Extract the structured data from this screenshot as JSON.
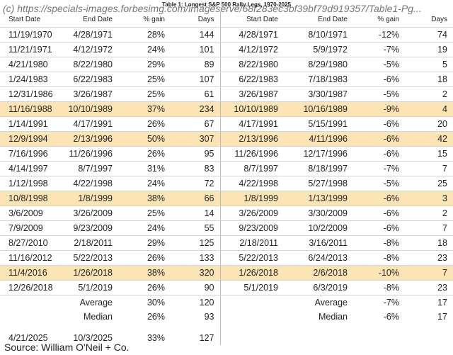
{
  "watermark": "(c) https://specials-images.forbesimg.com/imageserve/68f283ec3bf39bf79d919357/Table1-Pg...",
  "title": "Table 1: Longest S&P 500 Rally Legs, 1970-2025",
  "table": {
    "headers": [
      "Start Date",
      "End Date",
      "% gain",
      "Days",
      "Start Date",
      "End Date",
      "% gain",
      "Days"
    ],
    "rows": [
      {
        "cells": [
          "11/19/1970",
          "4/28/1971",
          "28%",
          144,
          "4/28/1971",
          "8/10/1971",
          "-12%",
          74
        ],
        "highlight": false
      },
      {
        "cells": [
          "11/21/1971",
          "4/12/1972",
          "24%",
          101,
          "4/12/1972",
          "5/9/1972",
          "-7%",
          19
        ],
        "highlight": false
      },
      {
        "cells": [
          "4/21/1980",
          "8/22/1980",
          "29%",
          89,
          "8/22/1980",
          "8/29/1980",
          "-5%",
          5
        ],
        "highlight": false
      },
      {
        "cells": [
          "1/24/1983",
          "6/22/1983",
          "25%",
          107,
          "6/22/1983",
          "7/18/1983",
          "-6%",
          18
        ],
        "highlight": false
      },
      {
        "cells": [
          "12/31/1986",
          "3/26/1987",
          "25%",
          61,
          "3/26/1987",
          "3/30/1987",
          "-5%",
          2
        ],
        "highlight": false
      },
      {
        "cells": [
          "11/16/1988",
          "10/10/1989",
          "37%",
          234,
          "10/10/1989",
          "10/16/1989",
          "-9%",
          4
        ],
        "highlight": true
      },
      {
        "cells": [
          "1/14/1991",
          "4/17/1991",
          "26%",
          67,
          "4/17/1991",
          "5/15/1991",
          "-6%",
          20
        ],
        "highlight": false
      },
      {
        "cells": [
          "12/9/1994",
          "2/13/1996",
          "50%",
          307,
          "2/13/1996",
          "4/11/1996",
          "-6%",
          42
        ],
        "highlight": true
      },
      {
        "cells": [
          "7/16/1996",
          "11/26/1996",
          "26%",
          95,
          "11/26/1996",
          "12/17/1996",
          "-6%",
          15
        ],
        "highlight": false
      },
      {
        "cells": [
          "4/14/1997",
          "8/7/1997",
          "31%",
          83,
          "8/7/1997",
          "8/18/1997",
          "-7%",
          7
        ],
        "highlight": false
      },
      {
        "cells": [
          "1/12/1998",
          "4/22/1998",
          "24%",
          72,
          "4/22/1998",
          "5/27/1998",
          "-5%",
          25
        ],
        "highlight": false
      },
      {
        "cells": [
          "10/8/1998",
          "1/8/1999",
          "38%",
          66,
          "1/8/1999",
          "1/13/1999",
          "-6%",
          3
        ],
        "highlight": true
      },
      {
        "cells": [
          "3/6/2009",
          "3/26/2009",
          "25%",
          14,
          "3/26/2009",
          "3/30/2009",
          "-6%",
          2
        ],
        "highlight": false
      },
      {
        "cells": [
          "7/9/2009",
          "9/23/2009",
          "24%",
          55,
          "9/23/2009",
          "10/2/2009",
          "-6%",
          7
        ],
        "highlight": false
      },
      {
        "cells": [
          "8/27/2010",
          "2/18/2011",
          "29%",
          125,
          "2/18/2011",
          "3/16/2011",
          "-8%",
          18
        ],
        "highlight": false
      },
      {
        "cells": [
          "11/16/2012",
          "5/22/2013",
          "26%",
          133,
          "5/22/2013",
          "6/24/2013",
          "-8%",
          23
        ],
        "highlight": false
      },
      {
        "cells": [
          "11/4/2016",
          "1/26/2018",
          "38%",
          320,
          "1/26/2018",
          "2/6/2018",
          "-10%",
          7
        ],
        "highlight": true
      },
      {
        "cells": [
          "12/26/2018",
          "5/1/2019",
          "26%",
          90,
          "5/1/2019",
          "6/3/2019",
          "-8%",
          23
        ],
        "highlight": false
      }
    ],
    "summary": [
      {
        "label": "Average",
        "gain": "30%",
        "days": 120,
        "label2": "Average",
        "gain2": "-7%",
        "days2": 17
      },
      {
        "label": "Median",
        "gain": "26%",
        "days": 93,
        "label2": "Median",
        "gain2": "-6%",
        "days2": 17
      }
    ],
    "current": [
      "4/21/2025",
      "10/3/2025",
      "33%",
      127
    ]
  },
  "source": "Source: William O'Neil + Co."
}
